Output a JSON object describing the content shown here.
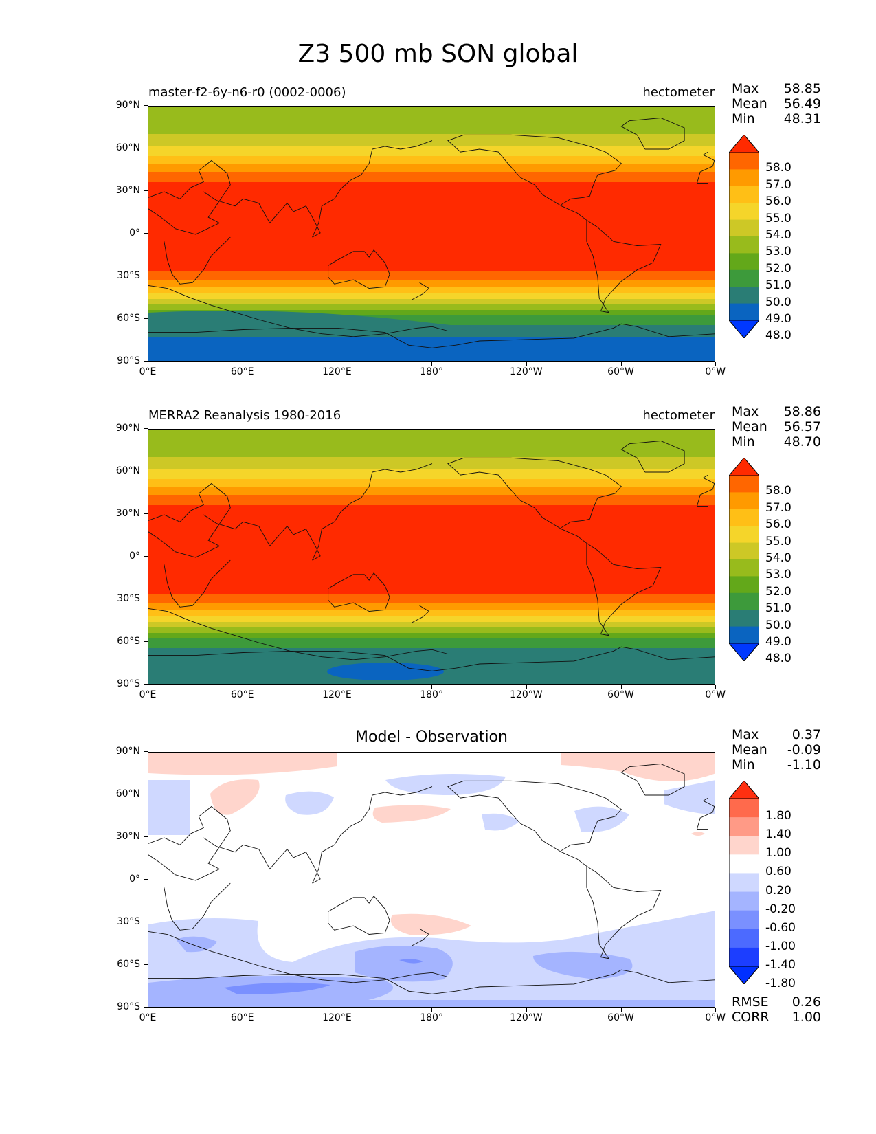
{
  "title": "Z3 500 mb SON global",
  "lat_ticks": [
    "90°N",
    "60°N",
    "30°N",
    "0°",
    "30°S",
    "60°S",
    "90°S"
  ],
  "lon_ticks": [
    "0°E",
    "60°E",
    "120°E",
    "180°",
    "120°W",
    "60°W",
    "0°W"
  ],
  "panels": [
    {
      "left_label": "master-f2-6y-n6-r0 (0002-0006)",
      "right_label": "hectometer",
      "stats": {
        "max_label": "Max",
        "max": "58.85",
        "mean_label": "Mean",
        "mean": "56.49",
        "min_label": "Min",
        "min": "48.31"
      },
      "colorbar": {
        "labels": [
          "58.0",
          "57.0",
          "56.0",
          "55.0",
          "54.0",
          "53.0",
          "52.0",
          "51.0",
          "50.0",
          "49.0",
          "48.0"
        ],
        "colors": [
          "#ff2a00",
          "#ff6600",
          "#ff9a00",
          "#ffbf16",
          "#f5d52a",
          "#cdc826",
          "#98bb1c",
          "#63a81a",
          "#3d9a3b",
          "#2a7d75",
          "#0a64c0",
          "#0038ff"
        ]
      },
      "field": "model"
    },
    {
      "left_label": "MERRA2 Reanalysis 1980-2016",
      "right_label": "hectometer",
      "stats": {
        "max_label": "Max",
        "max": "58.86",
        "mean_label": "Mean",
        "mean": "56.57",
        "min_label": "Min",
        "min": "48.70"
      },
      "colorbar": {
        "labels": [
          "58.0",
          "57.0",
          "56.0",
          "55.0",
          "54.0",
          "53.0",
          "52.0",
          "51.0",
          "50.0",
          "49.0",
          "48.0"
        ],
        "colors": [
          "#ff2a00",
          "#ff6600",
          "#ff9a00",
          "#ffbf16",
          "#f5d52a",
          "#cdc826",
          "#98bb1c",
          "#63a81a",
          "#3d9a3b",
          "#2a7d75",
          "#0a64c0",
          "#0038ff"
        ]
      },
      "field": "obs"
    },
    {
      "center_label": "Model - Observation",
      "stats": {
        "max_label": "Max",
        "max": "0.37",
        "mean_label": "Mean",
        "mean": "-0.09",
        "min_label": "Min",
        "min": "-1.10"
      },
      "colorbar": {
        "labels": [
          "1.80",
          "1.40",
          "1.00",
          "0.60",
          "0.20",
          "-0.20",
          "-0.60",
          "-1.00",
          "-1.40",
          "-1.80"
        ],
        "colors": [
          "#ff3010",
          "#ff6a4c",
          "#ff9a86",
          "#ffd5cc",
          "#ffffff",
          "#cfd8ff",
          "#a4b4ff",
          "#7a90ff",
          "#4c6aff",
          "#1c3eff",
          "#0030ff"
        ]
      },
      "field": "diff",
      "rmse_label": "RMSE",
      "rmse": "0.26",
      "corr_label": "CORR",
      "corr": "1.00"
    }
  ]
}
